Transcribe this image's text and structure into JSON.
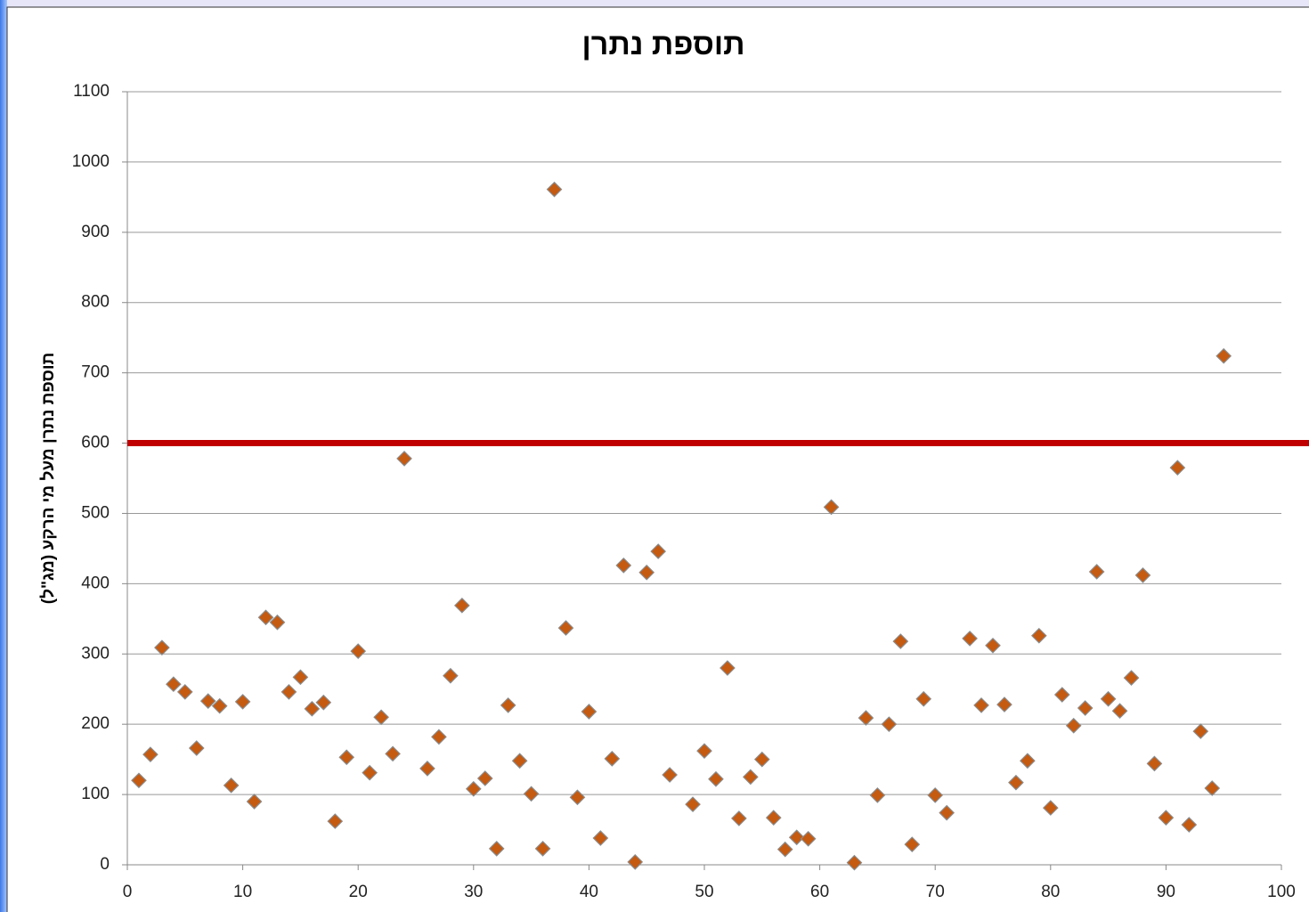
{
  "chart_data": {
    "type": "scatter",
    "title": "תוספת נתרן",
    "y_label": "תוספת נתרן מעל מי הרקע (מג\"ל)",
    "color": "#c55a11",
    "x": [
      1,
      2,
      3,
      4,
      5,
      6,
      7,
      8,
      9,
      10,
      11,
      12,
      13,
      14,
      15,
      16,
      17,
      18,
      19,
      20,
      21,
      22,
      23,
      24,
      26,
      27,
      28,
      29,
      30,
      31,
      32,
      33,
      34,
      35,
      36,
      37,
      38,
      39,
      40,
      41,
      42,
      43,
      44,
      45,
      46,
      47,
      49,
      50,
      51,
      52,
      53,
      54,
      55,
      56,
      57,
      58,
      59,
      61,
      63,
      64,
      65,
      66,
      67,
      68,
      69,
      70,
      71,
      73,
      74,
      75,
      76,
      77,
      78,
      79,
      80,
      81,
      82,
      83,
      84,
      85,
      86,
      87,
      88,
      89,
      90,
      91,
      92,
      93,
      94,
      95
    ],
    "values": [
      120,
      157,
      309,
      257,
      246,
      166,
      233,
      226,
      113,
      232,
      90,
      352,
      345,
      246,
      267,
      222,
      231,
      62,
      153,
      304,
      131,
      210,
      158,
      578,
      137,
      182,
      269,
      369,
      108,
      123,
      23,
      227,
      148,
      101,
      23,
      961,
      337,
      96,
      218,
      38,
      151,
      426,
      4,
      416,
      446,
      128,
      86,
      162,
      122,
      280,
      66,
      125,
      150,
      67,
      22,
      39,
      37,
      509,
      3,
      209,
      99,
      200,
      318,
      29,
      236,
      99,
      74,
      322,
      227,
      312,
      228,
      117,
      148,
      326,
      81,
      242,
      198,
      223,
      417,
      236,
      219,
      266,
      412,
      144,
      67,
      565,
      57,
      190,
      109,
      724
    ],
    "reference_line": {
      "value": 600,
      "color": "#c00000"
    },
    "xlim": [
      0,
      100
    ],
    "xticks": [
      0,
      10,
      20,
      30,
      40,
      50,
      60,
      70,
      80,
      90,
      100
    ],
    "ylim": [
      0,
      1100
    ],
    "yticks": [
      0,
      100,
      200,
      300,
      400,
      500,
      600,
      700,
      800,
      900,
      1000,
      1100
    ],
    "grid": true
  }
}
